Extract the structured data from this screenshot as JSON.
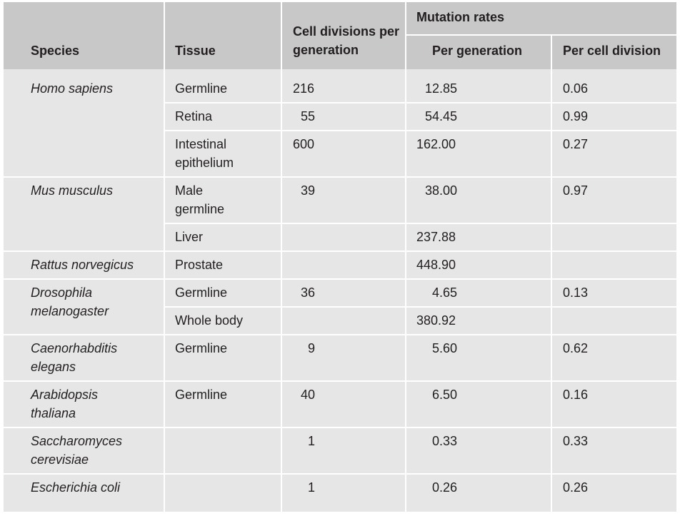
{
  "header": {
    "species": "Species",
    "tissue": "Tissue",
    "cell_divisions": "Cell divisions per generation",
    "mutation_rates": "Mutation rates",
    "per_generation": "Per generation",
    "per_cell_division": "Per cell division"
  },
  "rows": [
    {
      "species": "Homo sapiens",
      "tissue": "Germline",
      "divisions": "216",
      "per_gen": "12.85",
      "per_div": "0.06"
    },
    {
      "species": "",
      "tissue": "Retina",
      "divisions": "55",
      "per_gen": "54.45",
      "per_div": "0.99"
    },
    {
      "species": "",
      "tissue": "Intestinal epithelium",
      "divisions": "600",
      "per_gen": "162.00",
      "per_div": "0.27"
    },
    {
      "species": "Mus musculus",
      "tissue": "Male germline",
      "divisions": "39",
      "per_gen": "38.00",
      "per_div": "0.97"
    },
    {
      "species": "",
      "tissue": "Liver",
      "divisions": "",
      "per_gen": "237.88",
      "per_div": ""
    },
    {
      "species": "Rattus norvegicus",
      "tissue": "Prostate",
      "divisions": "",
      "per_gen": "448.90",
      "per_div": ""
    },
    {
      "species": "Drosophila melanogaster",
      "tissue": "Germline",
      "divisions": "36",
      "per_gen": "4.65",
      "per_div": "0.13"
    },
    {
      "species": "",
      "tissue": "Whole body",
      "divisions": "",
      "per_gen": "380.92",
      "per_div": ""
    },
    {
      "species": "Caenorhabditis elegans",
      "tissue": "Germline",
      "divisions": "9",
      "per_gen": "5.60",
      "per_div": "0.62"
    },
    {
      "species": "Arabidopsis thaliana",
      "tissue": "Germline",
      "divisions": "40",
      "per_gen": "6.50",
      "per_div": "0.16"
    },
    {
      "species": "Saccharomyces cerevisiae",
      "tissue": "",
      "divisions": "1",
      "per_gen": "0.33",
      "per_div": "0.33"
    },
    {
      "species": "Escherichia coli",
      "tissue": "",
      "divisions": "1",
      "per_gen": "0.26",
      "per_div": "0.26"
    }
  ]
}
